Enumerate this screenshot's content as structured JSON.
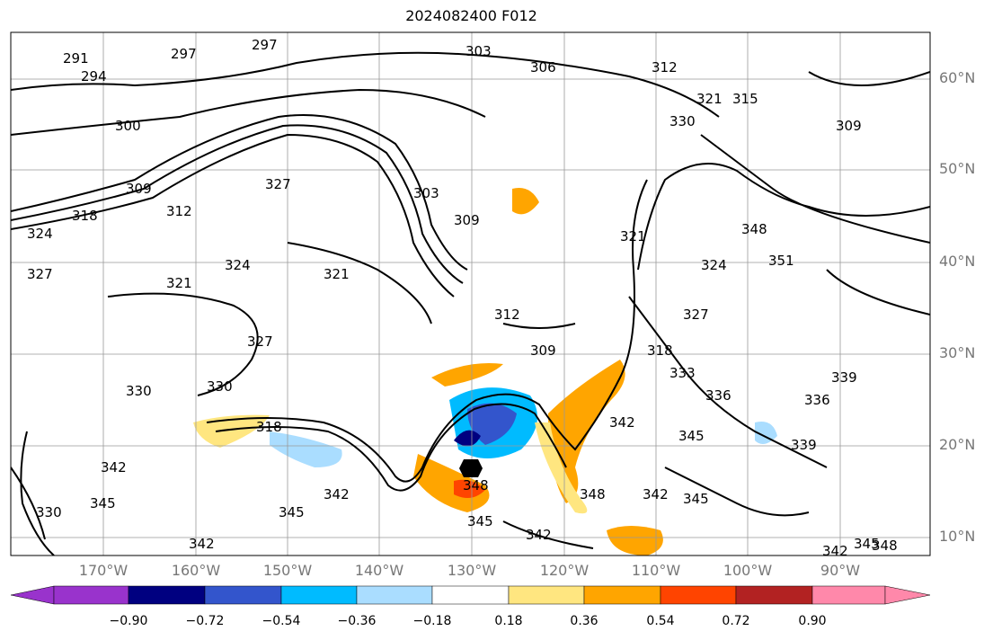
{
  "title": "2024082400 F012",
  "lat_labels": [
    "60°N",
    "50°N",
    "40°N",
    "30°N",
    "20°N",
    "10°N"
  ],
  "lon_labels": [
    "170°W",
    "160°W",
    "150°W",
    "140°W",
    "130°W",
    "120°W",
    "110°W",
    "100°W",
    "90°W"
  ],
  "colorbar": {
    "ticks": [
      "−0.90",
      "−0.72",
      "−0.54",
      "−0.36",
      "−0.18",
      "0.18",
      "0.36",
      "0.54",
      "0.72",
      "0.90"
    ],
    "colors": [
      "#9933cc",
      "#000080",
      "#3355cc",
      "#00bbff",
      "#aaddff",
      "#ffffff",
      "#ffe680",
      "#ffa500",
      "#ff4400",
      "#b22222",
      "#ff88aa"
    ]
  },
  "contour_labels": [
    "297",
    "297",
    "294",
    "291",
    "303",
    "306",
    "300",
    "312",
    "321",
    "315",
    "330",
    "309",
    "309",
    "303",
    "309",
    "327",
    "324",
    "321",
    "321",
    "318",
    "312",
    "327",
    "324",
    "327",
    "312",
    "309",
    "336",
    "339",
    "339",
    "342",
    "348",
    "345",
    "342",
    "342",
    "345",
    "342",
    "345",
    "342",
    "345",
    "348",
    "342",
    "345",
    "348",
    "336",
    "333",
    "345",
    "330",
    "330",
    "330",
    "318",
    "318",
    "351",
    "348",
    "342",
    "321",
    "324",
    "327"
  ]
}
